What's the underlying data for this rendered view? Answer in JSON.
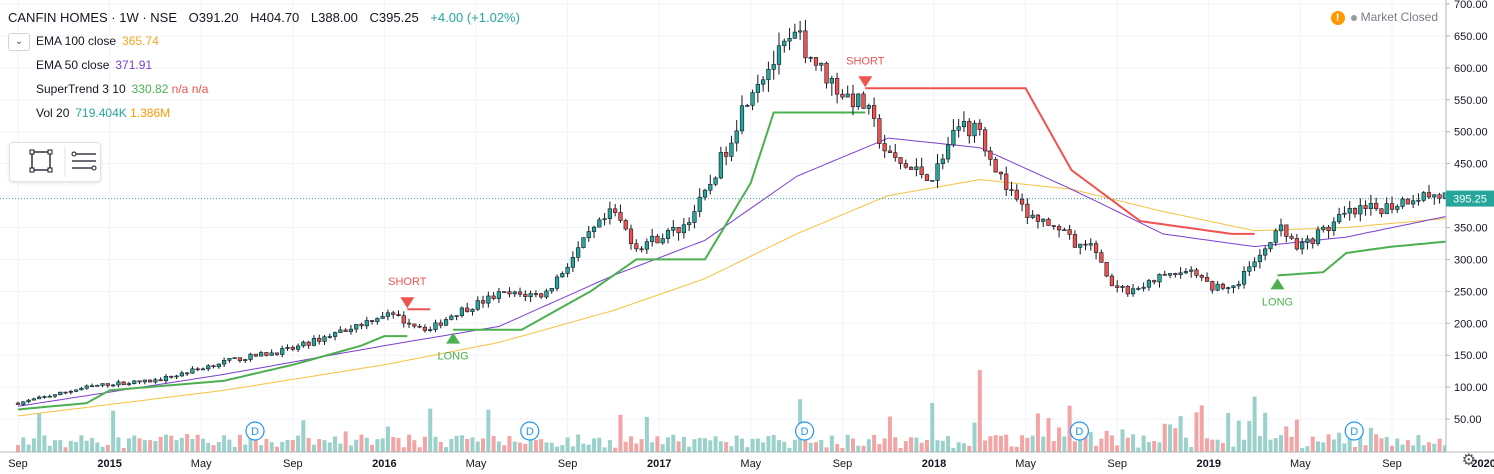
{
  "header": {
    "symbol": "CANFIN HOMES · 1W · NSE",
    "open": "O391.20",
    "high": "H404.70",
    "low": "L388.00",
    "close": "C395.25",
    "change": "+4.00 (+1.02%)"
  },
  "indicators": [
    {
      "name": "EMA 100 close",
      "value": "365.74",
      "color": "#f5a623"
    },
    {
      "name": "EMA 50 close",
      "value": "371.91",
      "color": "#7b3fd1"
    },
    {
      "name": "SuperTrend 3 10",
      "value": "330.82",
      "value2": "n/a",
      "value3": "n/a",
      "color": "#4caf50",
      "color2": "#ef5350"
    },
    {
      "name": "Vol 20",
      "value": "719.404K",
      "value2": "1.386M",
      "color": "#26a69a",
      "color2": "#ff9800"
    }
  ],
  "status": {
    "label": "Market Closed",
    "warning_icon": "warning-icon"
  },
  "colors": {
    "up": "#26a69a",
    "down": "#ef5350",
    "vol_up": "#9bd1cb",
    "vol_down": "#f2a5a4",
    "st_long": "#4caf50",
    "st_short": "#ef5350",
    "ema50": "#7b3fd1",
    "ema100": "#f5c242",
    "price_line": "#26a69a"
  },
  "chart_data": {
    "type": "candlestick",
    "symbol": "CANFIN HOMES",
    "interval": "1W",
    "exchange": "NSE",
    "last_price": 395.25,
    "last_price_label": "395.25",
    "ylim": [
      0,
      700
    ],
    "y_ticks": [
      50,
      100,
      150,
      200,
      250,
      300,
      350,
      400,
      450,
      500,
      550,
      600,
      650,
      700
    ],
    "y_tick_labels": [
      "50.00",
      "100.00",
      "150.00",
      "200.00",
      "250.00",
      "300.00",
      "350.00",
      "400.00",
      "450.00",
      "500.00",
      "550.00",
      "600.00",
      "650.00",
      "700.00"
    ],
    "x_tick_labels": [
      "Sep",
      "2015",
      "May",
      "Sep",
      "2016",
      "May",
      "Sep",
      "2017",
      "May",
      "Sep",
      "2018",
      "May",
      "Sep",
      "2019",
      "May",
      "Sep",
      "2020"
    ],
    "x_tick_bold": [
      false,
      true,
      false,
      false,
      true,
      false,
      false,
      true,
      false,
      false,
      true,
      false,
      false,
      true,
      false,
      false,
      true
    ],
    "price_anchors": [
      [
        "2014-09",
        75
      ],
      [
        "2014-12",
        100
      ],
      [
        "2015-01",
        105
      ],
      [
        "2015-03",
        110
      ],
      [
        "2015-06",
        140
      ],
      [
        "2015-09",
        160
      ],
      [
        "2015-12",
        200
      ],
      [
        "2016-01",
        215
      ],
      [
        "2016-03",
        190
      ],
      [
        "2016-04",
        215
      ],
      [
        "2016-06",
        245
      ],
      [
        "2016-08",
        245
      ],
      [
        "2016-10",
        340
      ],
      [
        "2016-11",
        375
      ],
      [
        "2016-12",
        320
      ],
      [
        "2017-02",
        350
      ],
      [
        "2017-03",
        400
      ],
      [
        "2017-04",
        480
      ],
      [
        "2017-05",
        570
      ],
      [
        "2017-07",
        650
      ],
      [
        "2017-08",
        600
      ],
      [
        "2017-09",
        560
      ],
      [
        "2017-10",
        540
      ],
      [
        "2017-11",
        460
      ],
      [
        "2017-12",
        440
      ],
      [
        "2018-01",
        430
      ],
      [
        "2018-02",
        510
      ],
      [
        "2018-03",
        500
      ],
      [
        "2018-04",
        420
      ],
      [
        "2018-05",
        370
      ],
      [
        "2018-06",
        355
      ],
      [
        "2018-07",
        330
      ],
      [
        "2018-08",
        315
      ],
      [
        "2018-09",
        250
      ],
      [
        "2018-10",
        255
      ],
      [
        "2018-11",
        275
      ],
      [
        "2018-12",
        285
      ],
      [
        "2019-01",
        260
      ],
      [
        "2019-02",
        250
      ],
      [
        "2019-03",
        300
      ],
      [
        "2019-04",
        350
      ],
      [
        "2019-05",
        320
      ],
      [
        "2019-06",
        345
      ],
      [
        "2019-07",
        370
      ],
      [
        "2019-09",
        385
      ],
      [
        "2019-10",
        400
      ],
      [
        "2019-11",
        400
      ],
      [
        "2019-12",
        395
      ]
    ],
    "supertrend_long": [
      [
        "2014-09",
        65
      ],
      [
        "2014-12",
        75
      ],
      [
        "2015-01",
        95
      ],
      [
        "2015-06",
        110
      ],
      [
        "2015-09",
        135
      ],
      [
        "2015-12",
        165
      ],
      [
        "2016-01",
        180
      ],
      [
        "2016-02",
        180
      ]
    ],
    "supertrend_short": [
      [
        "2016-02",
        222
      ],
      [
        "2016-03",
        222
      ]
    ],
    "supertrend_long2": [
      [
        "2016-04",
        190
      ],
      [
        "2016-07",
        190
      ],
      [
        "2016-10",
        250
      ],
      [
        "2016-12",
        300
      ],
      [
        "2017-03",
        300
      ],
      [
        "2017-05",
        420
      ],
      [
        "2017-06",
        530
      ],
      [
        "2017-10",
        530
      ]
    ],
    "supertrend_short2": [
      [
        "2017-10",
        568
      ],
      [
        "2018-05",
        568
      ],
      [
        "2018-07",
        440
      ],
      [
        "2018-10",
        360
      ],
      [
        "2019-02",
        340
      ],
      [
        "2019-03",
        340
      ]
    ],
    "supertrend_long3": [
      [
        "2019-04",
        275
      ],
      [
        "2019-06",
        280
      ],
      [
        "2019-07",
        310
      ],
      [
        "2019-09",
        320
      ],
      [
        "2019-12",
        330
      ]
    ],
    "ema50": [
      [
        "2014-09",
        70
      ],
      [
        "2015-06",
        120
      ],
      [
        "2016-01",
        165
      ],
      [
        "2016-06",
        195
      ],
      [
        "2016-11",
        275
      ],
      [
        "2017-03",
        330
      ],
      [
        "2017-07",
        430
      ],
      [
        "2017-11",
        490
      ],
      [
        "2018-03",
        475
      ],
      [
        "2018-07",
        410
      ],
      [
        "2018-11",
        340
      ],
      [
        "2019-03",
        320
      ],
      [
        "2019-07",
        335
      ],
      [
        "2019-12",
        372
      ]
    ],
    "ema100": [
      [
        "2014-09",
        55
      ],
      [
        "2015-06",
        95
      ],
      [
        "2016-01",
        135
      ],
      [
        "2016-06",
        170
      ],
      [
        "2016-11",
        220
      ],
      [
        "2017-03",
        270
      ],
      [
        "2017-07",
        340
      ],
      [
        "2017-11",
        400
      ],
      [
        "2018-03",
        425
      ],
      [
        "2018-07",
        410
      ],
      [
        "2018-11",
        375
      ],
      [
        "2019-03",
        345
      ],
      [
        "2019-07",
        350
      ],
      [
        "2019-12",
        366
      ]
    ],
    "signals": [
      {
        "type": "SHORT",
        "date": "2016-02",
        "price": 222
      },
      {
        "type": "LONG",
        "date": "2016-04",
        "price": 190
      },
      {
        "type": "SHORT",
        "date": "2017-10",
        "price": 568
      },
      {
        "type": "LONG",
        "date": "2019-04",
        "price": 275
      }
    ],
    "dividend_marker": "D",
    "dividend_dates": [
      "2015-07",
      "2016-07",
      "2017-07",
      "2018-07",
      "2019-07"
    ]
  }
}
